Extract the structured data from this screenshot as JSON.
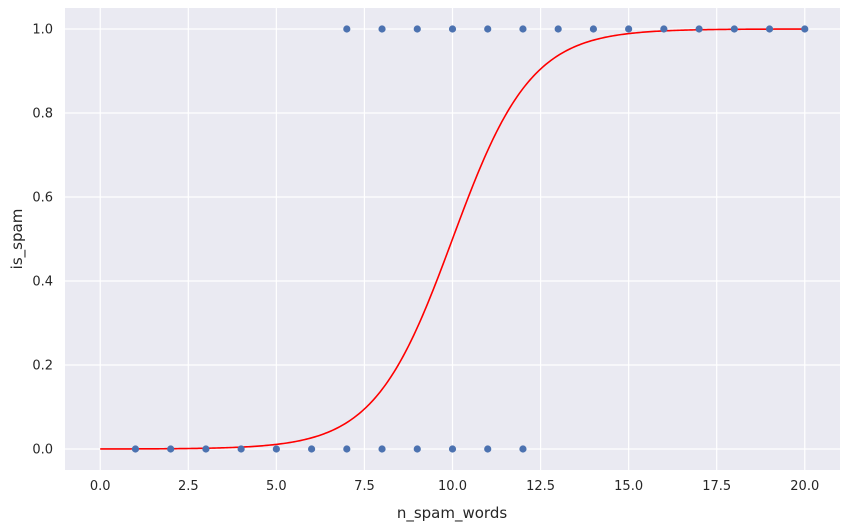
{
  "chart_data": {
    "type": "scatter",
    "xlabel": "n_spam_words",
    "ylabel": "is_spam",
    "xlim": [
      -1.0,
      21.0
    ],
    "ylim": [
      -0.05,
      1.05
    ],
    "xticks": [
      "0.0",
      "2.5",
      "5.0",
      "7.5",
      "10.0",
      "12.5",
      "15.0",
      "17.5",
      "20.0"
    ],
    "yticks": [
      "0.0",
      "0.2",
      "0.4",
      "0.6",
      "0.8",
      "1.0"
    ],
    "xtick_values": [
      0,
      2.5,
      5,
      7.5,
      10,
      12.5,
      15,
      17.5,
      20
    ],
    "ytick_values": [
      0,
      0.2,
      0.4,
      0.6,
      0.8,
      1.0
    ],
    "grid": true,
    "background": "#eaeaf2",
    "series": [
      {
        "kind": "scatter",
        "color": "#4c72b0",
        "points": [
          [
            1,
            0
          ],
          [
            2,
            0
          ],
          [
            3,
            0
          ],
          [
            4,
            0
          ],
          [
            5,
            0
          ],
          [
            6,
            0
          ],
          [
            7,
            0
          ],
          [
            8,
            0
          ],
          [
            9,
            0
          ],
          [
            10,
            0
          ],
          [
            11,
            0
          ],
          [
            12,
            0
          ],
          [
            7,
            1
          ],
          [
            8,
            1
          ],
          [
            9,
            1
          ],
          [
            10,
            1
          ],
          [
            11,
            1
          ],
          [
            12,
            1
          ],
          [
            13,
            1
          ],
          [
            14,
            1
          ],
          [
            15,
            1
          ],
          [
            16,
            1
          ],
          [
            17,
            1
          ],
          [
            18,
            1
          ],
          [
            19,
            1
          ],
          [
            20,
            1
          ]
        ]
      },
      {
        "kind": "line",
        "color": "#ff0000",
        "function": "logistic",
        "slope": 0.9,
        "midpoint": 10.0,
        "x_range": [
          0,
          20
        ]
      }
    ]
  }
}
